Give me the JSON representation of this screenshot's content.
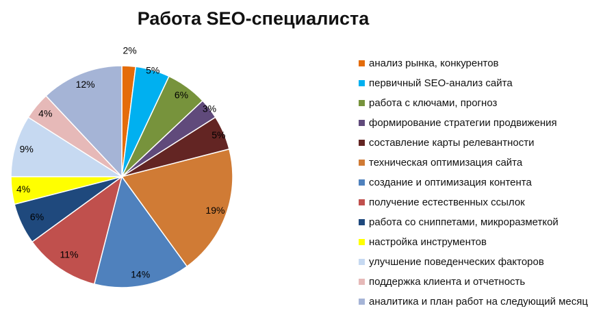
{
  "chart_data": {
    "type": "pie",
    "title": "Работа SEO-специалиста",
    "legend_position": "right",
    "slices": [
      {
        "label": "анализ рынка, конкурентов",
        "value": 2,
        "value_label": "2%",
        "color": "#e46c0a"
      },
      {
        "label": "первичный SEO-анализ сайта",
        "value": 5,
        "value_label": "5%",
        "color": "#00b0f0"
      },
      {
        "label": "работа с ключами, прогноз",
        "value": 6,
        "value_label": "6%",
        "color": "#77933c"
      },
      {
        "label": "формирование стратегии продвижения",
        "value": 3,
        "value_label": "3%",
        "color": "#604a7b"
      },
      {
        "label": "составление карты релевантности",
        "value": 5,
        "value_label": "5%",
        "color": "#632523"
      },
      {
        "label": "техническая оптимизация сайта",
        "value": 19,
        "value_label": "19%",
        "color": "#d07b35"
      },
      {
        "label": "создание и оптимизация контента",
        "value": 14,
        "value_label": "14%",
        "color": "#4f81bd"
      },
      {
        "label": "получение естественных ссылок",
        "value": 11,
        "value_label": "11%",
        "color": "#c0504d"
      },
      {
        "label": "работа со сниппетами, микроразметкой",
        "value": 6,
        "value_label": "6%",
        "color": "#1f497d"
      },
      {
        "label": "настройка инструментов",
        "value": 4,
        "value_label": "4%",
        "color": "#ffff00"
      },
      {
        "label": "улучшение поведенческих факторов",
        "value": 9,
        "value_label": "9%",
        "color": "#c6d9f1"
      },
      {
        "label": "поддержка клиента и отчетность",
        "value": 4,
        "value_label": "4%",
        "color": "#e6b9b8"
      },
      {
        "label": "аналитика и план работ на следующий месяц",
        "value": 12,
        "value_label": "12%",
        "color": "#a5b4d6"
      }
    ]
  }
}
